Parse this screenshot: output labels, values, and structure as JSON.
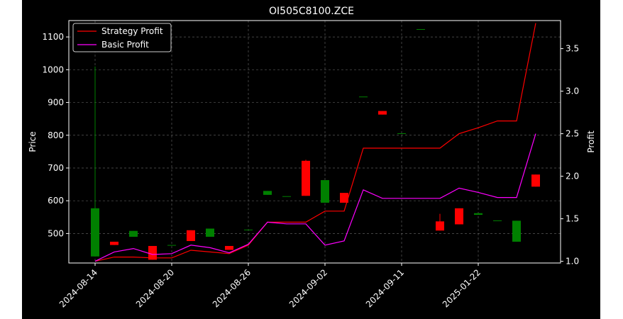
{
  "chart_data": {
    "type": "candlestick+line",
    "title": "OI505C8100.ZCE",
    "ylabel": "Price",
    "y2label": "Profit",
    "ylim": [
      410,
      1150
    ],
    "y2lim": [
      0.98,
      3.83
    ],
    "yticks": [
      500,
      600,
      700,
      800,
      900,
      1000,
      1100
    ],
    "y2ticks": [
      1.0,
      1.5,
      2.0,
      2.5,
      3.0,
      3.5
    ],
    "y2tick_labels": [
      "1.0",
      "1.5",
      "2.0",
      "2.5",
      "3.0",
      "3.5"
    ],
    "xtick_labels": [
      "2024-08-14",
      "2024-08-20",
      "2024-08-26",
      "2024-09-02",
      "2024-09-11",
      "2025-01-22"
    ],
    "xtick_index": [
      0,
      4,
      8,
      12,
      16,
      20
    ],
    "grid": true,
    "legend_position": "top-left",
    "candles": [
      {
        "open": 430,
        "close": 577,
        "high": 1010,
        "low": 430
      },
      {
        "open": 475,
        "close": 465,
        "high": 475,
        "low": 465
      },
      {
        "open": 490,
        "close": 508,
        "high": 508,
        "low": 490
      },
      {
        "open": 462,
        "close": 420,
        "high": 462,
        "low": 420
      },
      {
        "open": 465,
        "close": 465,
        "high": 465,
        "low": 465
      },
      {
        "open": 510,
        "close": 477,
        "high": 510,
        "low": 477
      },
      {
        "open": 490,
        "close": 515,
        "high": 515,
        "low": 490
      },
      {
        "open": 462,
        "close": 450,
        "high": 462,
        "low": 450
      },
      {
        "open": 512,
        "close": 512,
        "high": 512,
        "low": 512
      },
      {
        "open": 618,
        "close": 630,
        "high": 630,
        "low": 618
      },
      {
        "open": 614,
        "close": 614,
        "high": 614,
        "low": 614
      },
      {
        "open": 722,
        "close": 615,
        "high": 725,
        "low": 615
      },
      {
        "open": 594,
        "close": 663,
        "high": 663,
        "low": 594
      },
      {
        "open": 624,
        "close": 594,
        "high": 624,
        "low": 594
      },
      {
        "open": 918,
        "close": 918,
        "high": 918,
        "low": 918
      },
      {
        "open": 874,
        "close": 863,
        "high": 874,
        "low": 863
      },
      {
        "open": 806,
        "close": 806,
        "high": 806,
        "low": 806
      },
      {
        "open": 1124,
        "close": 1124,
        "high": 1124,
        "low": 1124
      },
      {
        "open": 537,
        "close": 509,
        "high": 560,
        "low": 509
      },
      {
        "open": 577,
        "close": 528,
        "high": 577,
        "low": 528
      },
      {
        "open": 557,
        "close": 562,
        "high": 562,
        "low": 557
      },
      {
        "open": 540,
        "close": 540,
        "high": 540,
        "low": 540
      },
      {
        "open": 475,
        "close": 539,
        "high": 539,
        "low": 475
      },
      {
        "open": 680,
        "close": 643,
        "high": 680,
        "low": 643
      }
    ],
    "series": [
      {
        "name": "Strategy Profit",
        "color": "#ff0000",
        "values": [
          1.0,
          1.05,
          1.05,
          1.04,
          1.04,
          1.13,
          1.11,
          1.09,
          1.19,
          1.46,
          1.46,
          1.46,
          1.59,
          1.59,
          2.33,
          2.33,
          2.33,
          2.33,
          2.33,
          2.5,
          2.57,
          2.65,
          2.65,
          3.8
        ]
      },
      {
        "name": "Basic Profit",
        "color": "#ff00ff",
        "values": [
          1.0,
          1.11,
          1.15,
          1.08,
          1.09,
          1.19,
          1.16,
          1.1,
          1.2,
          1.46,
          1.44,
          1.44,
          1.19,
          1.24,
          1.84,
          1.74,
          1.74,
          1.74,
          1.74,
          1.86,
          1.81,
          1.75,
          1.75,
          2.5
        ]
      }
    ]
  }
}
